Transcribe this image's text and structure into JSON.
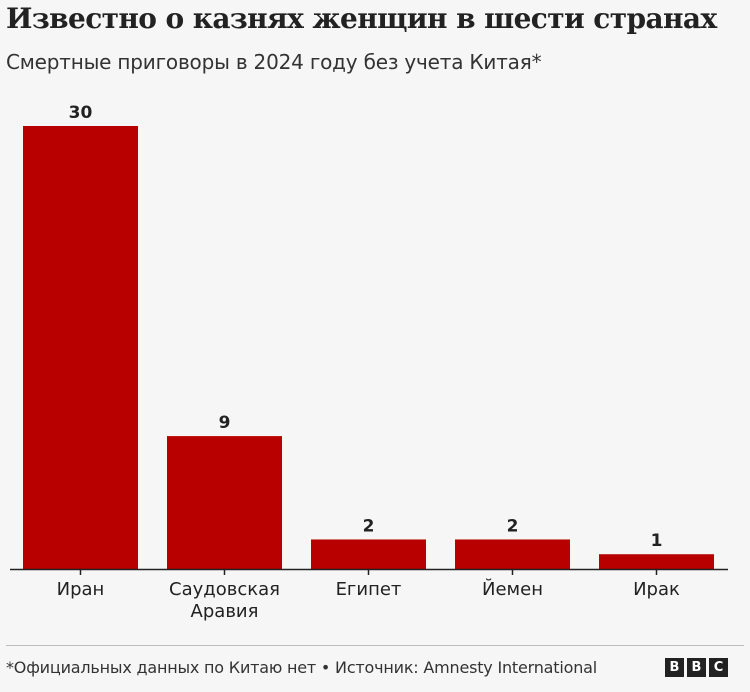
{
  "title": "Известно о казнях женщин в шести странах",
  "subtitle": "Смертные приговоры в 2024 году без учета Китая*",
  "footnote": "*Официальных данных по Китаю нет • Источник: Amnesty International",
  "logo": [
    "B",
    "B",
    "C"
  ],
  "colors": {
    "bar": "#b80000",
    "axis": "#222222",
    "background": "#f6f6f6"
  },
  "chart_data": {
    "type": "bar",
    "title": "Известно о казнях женщин в шести странах",
    "subtitle": "Смертные приговоры в 2024 году без учета Китая*",
    "categories": [
      [
        "Иран"
      ],
      [
        "Саудовская",
        "Аравия"
      ],
      [
        "Египет"
      ],
      [
        "Йемен"
      ],
      [
        "Ирак"
      ]
    ],
    "values": [
      30,
      9,
      2,
      2,
      1
    ],
    "data_labels": [
      "30",
      "9",
      "2",
      "2",
      "1"
    ],
    "xlabel": "",
    "ylabel": "",
    "ylim": [
      0,
      30
    ],
    "grid": false,
    "legend": "none"
  }
}
